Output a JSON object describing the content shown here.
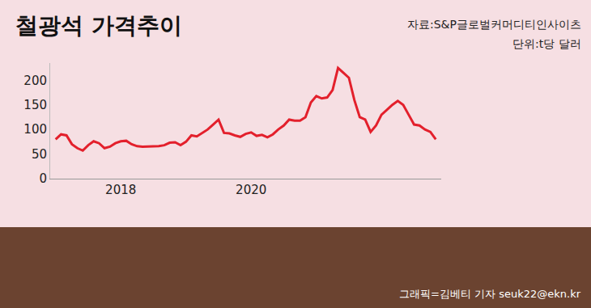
{
  "chart_data": {
    "type": "line",
    "title": "철광석 가격추이",
    "source": "자료:S&P글로벌커머디티인사이츠",
    "unit": "단위:t당 달러",
    "credit": "그래픽=김베티 기자 seuk22@ekn.kr",
    "color": "#e3202c",
    "grid": false,
    "categories": [
      null,
      null,
      null,
      null,
      null,
      null,
      null,
      null,
      null,
      null,
      null,
      null,
      "2018",
      null,
      null,
      null,
      null,
      null,
      null,
      null,
      null,
      null,
      null,
      null,
      null,
      null,
      null,
      null,
      null,
      null,
      null,
      null,
      null,
      null,
      null,
      null,
      "2020",
      null,
      null,
      null,
      null,
      null,
      null,
      null,
      null,
      null,
      null,
      null,
      null,
      null,
      null,
      null,
      null,
      null,
      null,
      null,
      null,
      null,
      null,
      null,
      null,
      null,
      null,
      null,
      null,
      null,
      null,
      null,
      null,
      null,
      null
    ],
    "values": [
      80,
      90,
      88,
      70,
      62,
      57,
      68,
      76,
      72,
      62,
      65,
      72,
      76,
      77,
      70,
      66,
      65,
      65,
      65,
      66,
      68,
      73,
      74,
      68,
      75,
      88,
      86,
      93,
      100,
      110,
      120,
      93,
      92,
      88,
      85,
      91,
      94,
      87,
      89,
      84,
      90,
      100,
      108,
      120,
      118,
      118,
      125,
      155,
      168,
      163,
      165,
      180,
      225,
      215,
      205,
      160,
      125,
      120,
      95,
      108,
      130,
      140,
      150,
      158,
      150,
      130,
      110,
      108,
      100,
      95,
      80
    ],
    "ylim": [
      0,
      235
    ],
    "yticks": [
      0,
      50,
      100,
      150,
      200
    ]
  }
}
